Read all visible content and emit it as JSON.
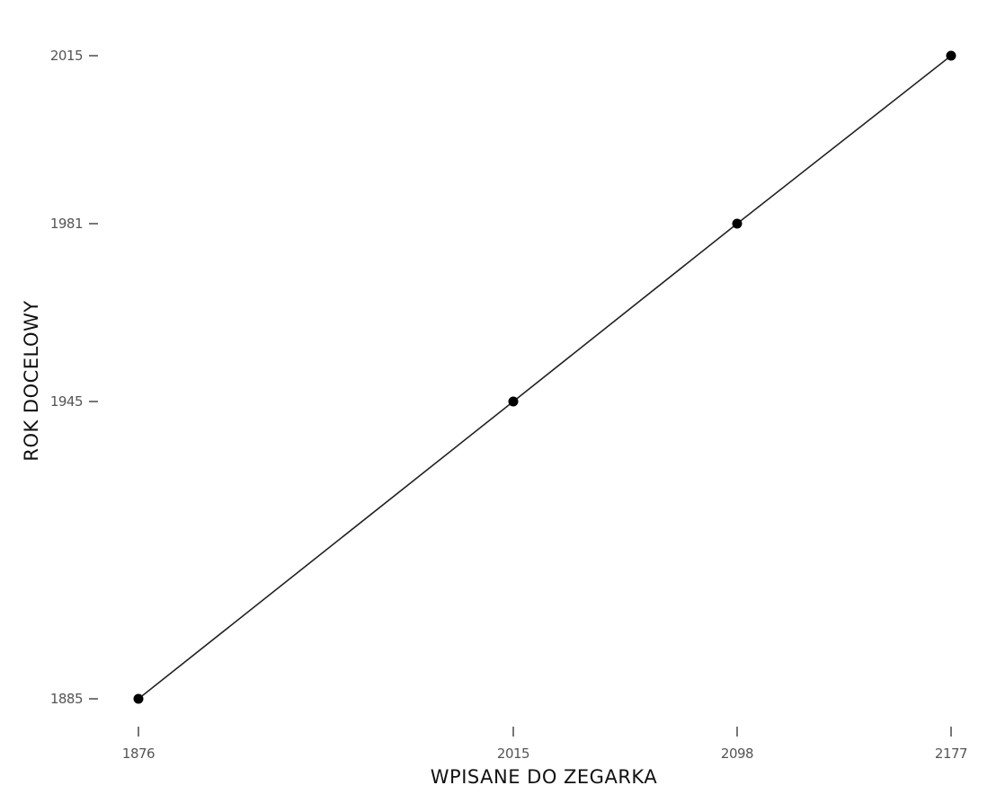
{
  "chart_data": {
    "type": "line",
    "title": "",
    "xlabel": "WPISANE DO ZEGARKA",
    "ylabel": "ROK DOCELOWY",
    "x_ticks": [
      1876,
      2015,
      2098,
      2177
    ],
    "y_ticks": [
      1885,
      1945,
      1981,
      2015
    ],
    "x_scale": "ordinal-unequal",
    "y_scale": "ordinal-unequal",
    "grid": false,
    "legend": "none",
    "series": [
      {
        "points": [
          {
            "x": 1876,
            "y": 1885
          },
          {
            "x": 2015,
            "y": 1945
          },
          {
            "x": 2098,
            "y": 1981
          },
          {
            "x": 2177,
            "y": 2015
          }
        ]
      }
    ],
    "colors": {
      "line": "#222222",
      "marker": "#000000",
      "tick_label": "#555555",
      "axis_label": "#111111"
    }
  }
}
